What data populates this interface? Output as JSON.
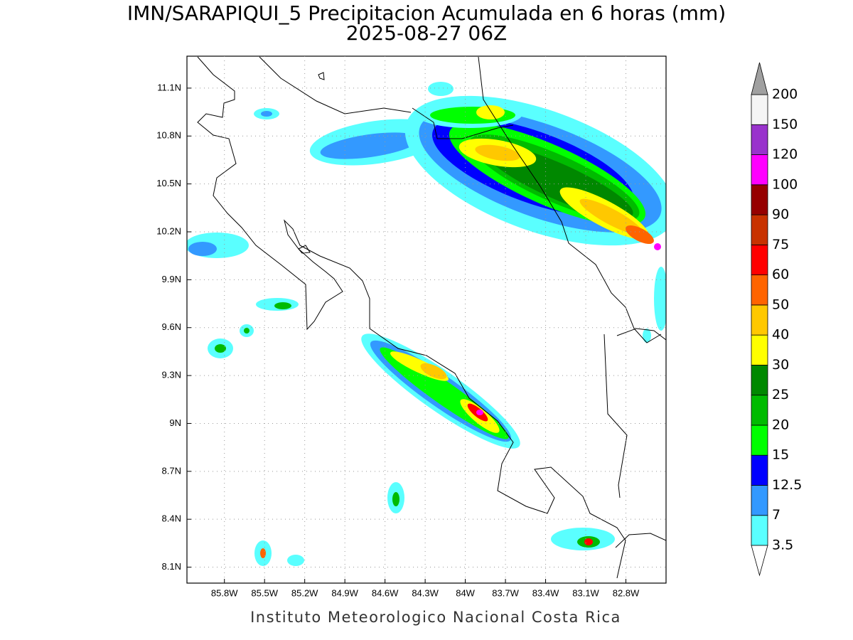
{
  "map": {
    "title": "IMN/SARAPIQUI_5 Precipitacion Acumulada en 6 horas (mm)",
    "subtitle": "2025-08-27 06Z",
    "footer": "Instituto Meteorologico Nacional Costa Rica",
    "xlim": [
      -86.08,
      -82.5
    ],
    "ylim": [
      8.0,
      11.3
    ],
    "xticks": [
      {
        "value": -85.8,
        "label": "85.8W"
      },
      {
        "value": -85.5,
        "label": "85.5W"
      },
      {
        "value": -85.2,
        "label": "85.2W"
      },
      {
        "value": -84.9,
        "label": "84.9W"
      },
      {
        "value": -84.6,
        "label": "84.6W"
      },
      {
        "value": -84.3,
        "label": "84.3W"
      },
      {
        "value": -84.0,
        "label": "84W"
      },
      {
        "value": -83.7,
        "label": "83.7W"
      },
      {
        "value": -83.4,
        "label": "83.4W"
      },
      {
        "value": -83.1,
        "label": "83.1W"
      },
      {
        "value": -82.8,
        "label": "82.8W"
      }
    ],
    "yticks": [
      {
        "value": 8.1,
        "label": "8.1N"
      },
      {
        "value": 8.4,
        "label": "8.4N"
      },
      {
        "value": 8.7,
        "label": "8.7N"
      },
      {
        "value": 9.0,
        "label": "9N"
      },
      {
        "value": 9.3,
        "label": "9.3N"
      },
      {
        "value": 9.6,
        "label": "9.6N"
      },
      {
        "value": 9.9,
        "label": "9.9N"
      },
      {
        "value": 10.2,
        "label": "10.2N"
      },
      {
        "value": 10.5,
        "label": "10.5N"
      },
      {
        "value": 10.8,
        "label": "10.8N"
      },
      {
        "value": 11.1,
        "label": "11.1N"
      }
    ],
    "grid": true,
    "colorbar": {
      "levels": [
        3.5,
        7,
        12.5,
        15,
        20,
        25,
        30,
        40,
        50,
        60,
        75,
        90,
        100,
        120,
        150,
        200
      ],
      "colors": [
        "#5affff",
        "#3399ff",
        "#0000ff",
        "#00ff00",
        "#00bb00",
        "#008800",
        "#ffff00",
        "#ffc800",
        "#ff6400",
        "#ff0000",
        "#c83200",
        "#960000",
        "#ff00ff",
        "#9933cc",
        "#f5f5f5"
      ],
      "under_color": "#ffffff",
      "over_color": "#a0a0a0"
    }
  }
}
